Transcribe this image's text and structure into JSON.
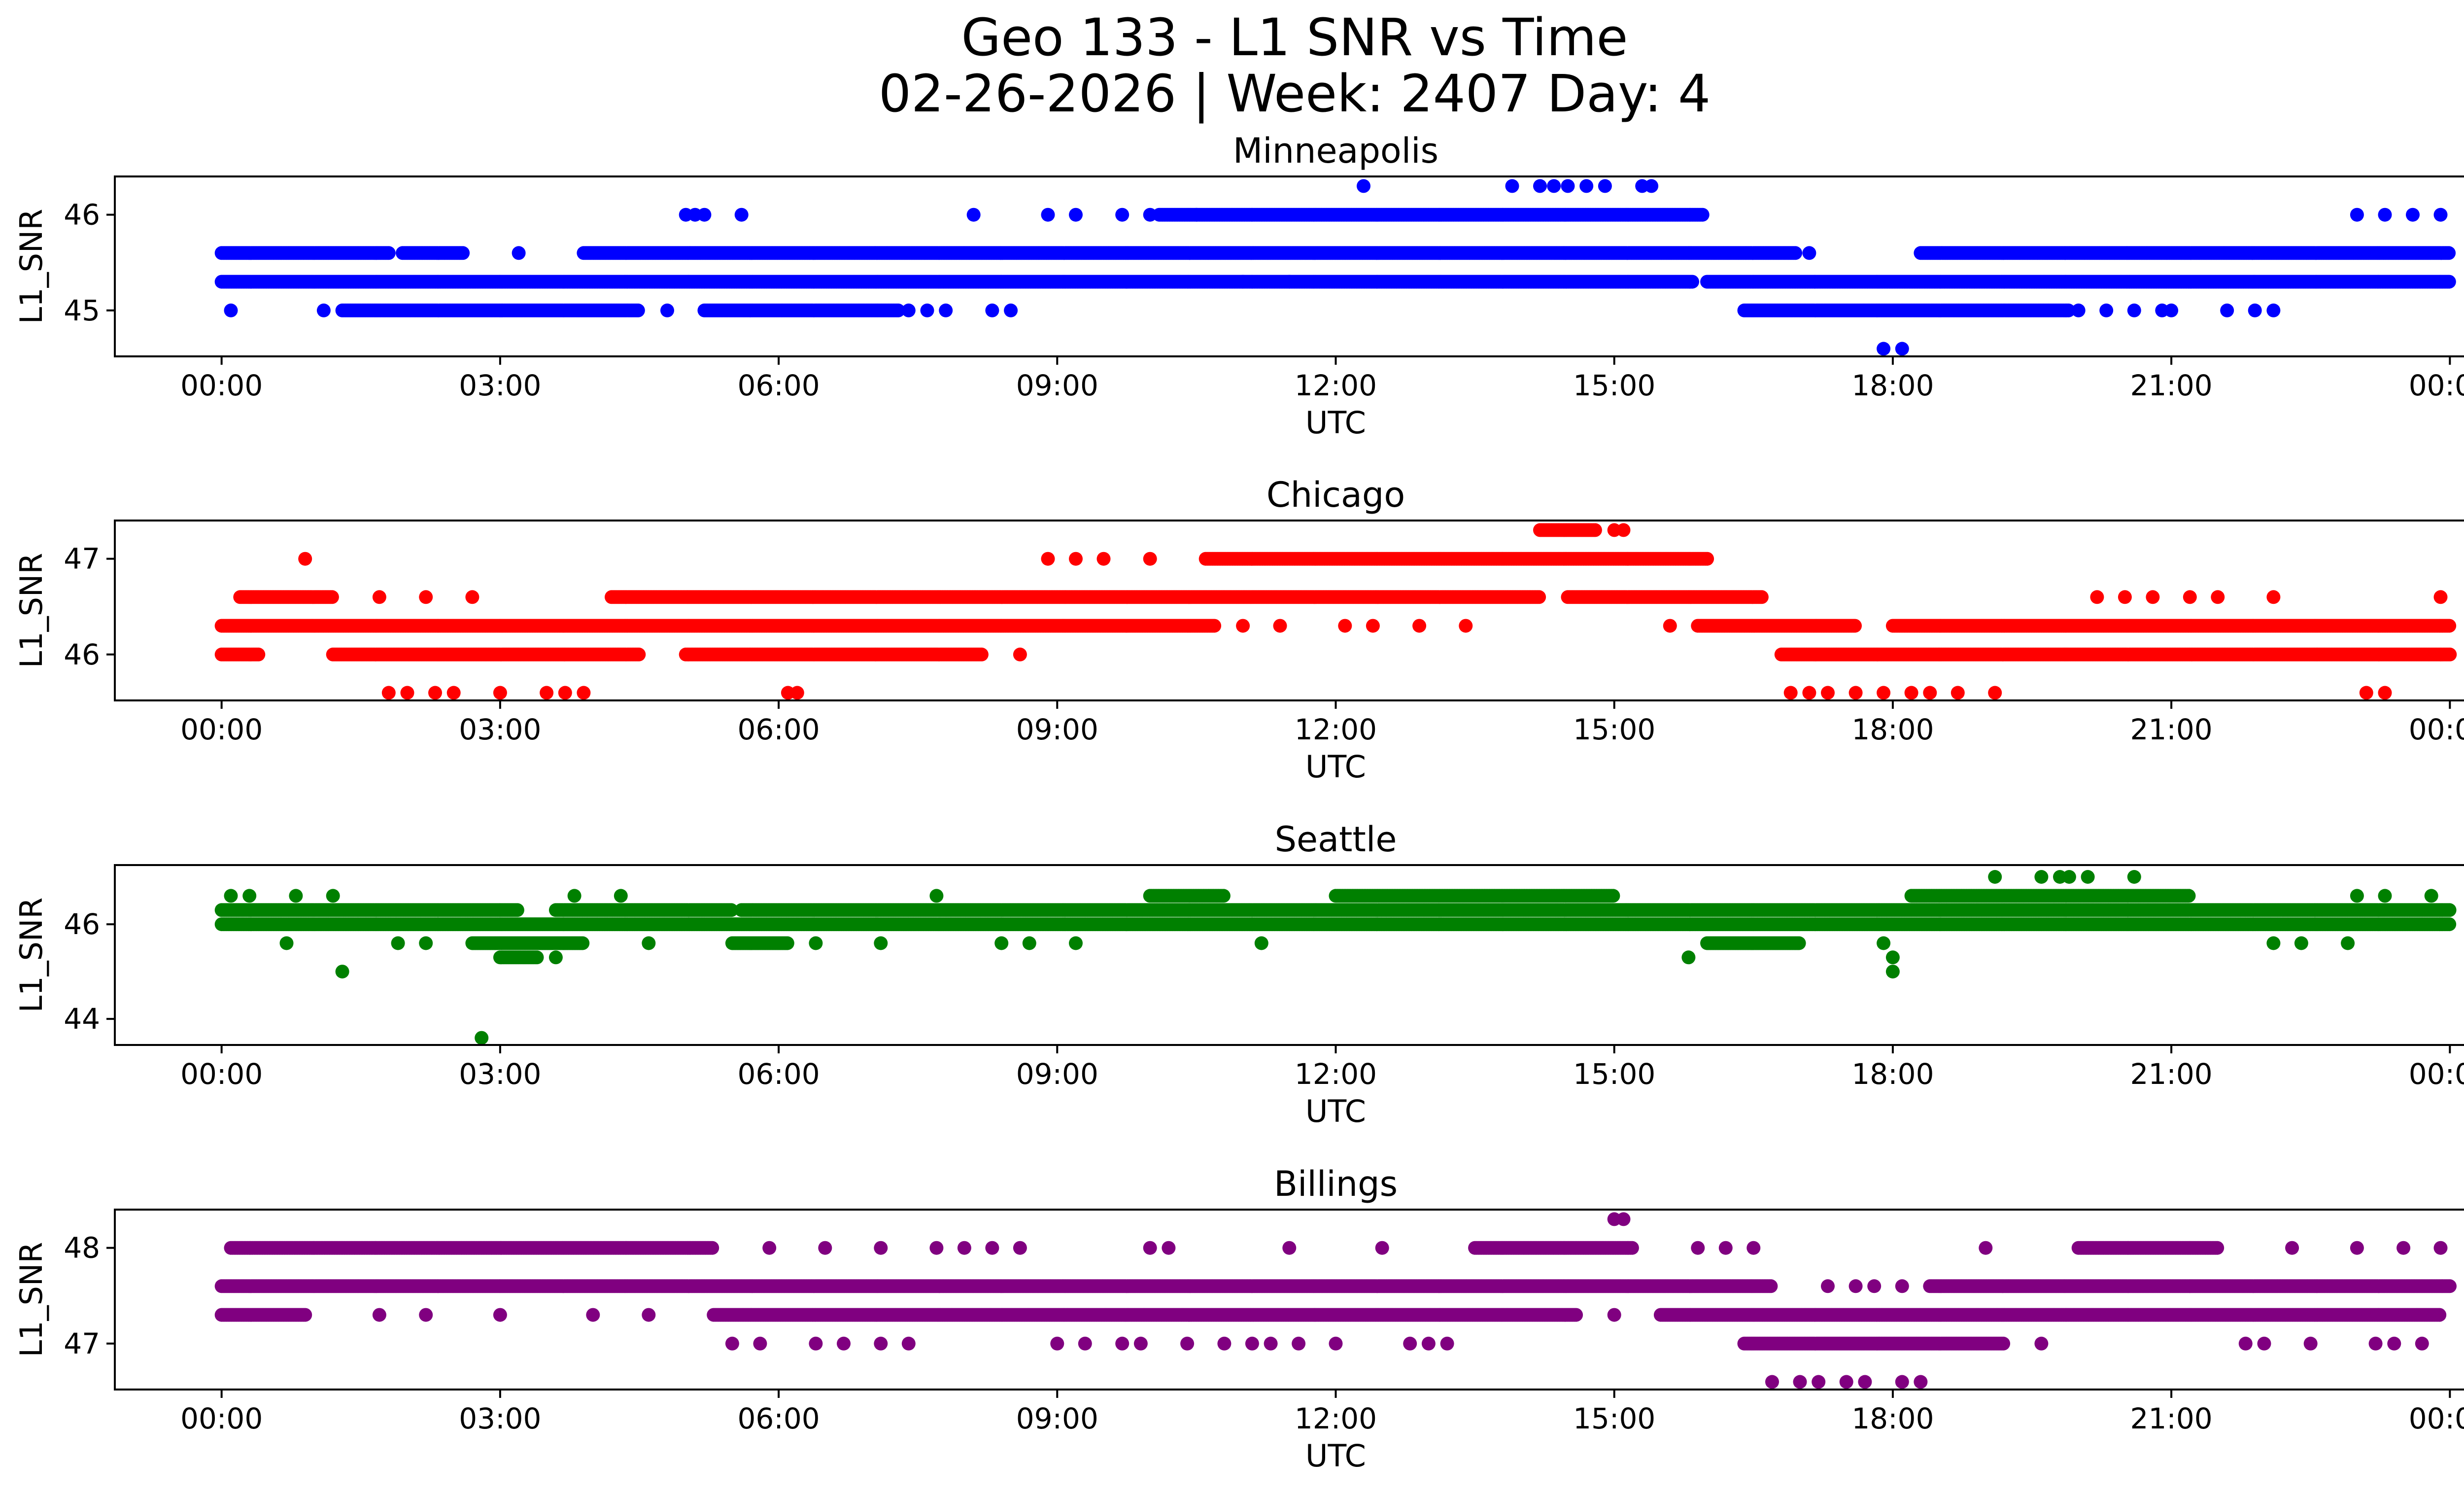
{
  "figure": {
    "title_line1": "Geo 133 - L1 SNR vs Time",
    "title_line2": "02-26-2026 | Week: 2407 Day: 4"
  },
  "chart_data": [
    {
      "type": "scatter",
      "title": "Minneapolis",
      "xlabel": "UTC",
      "ylabel": "L1_SNR",
      "color": "#0000ff",
      "xlim_hours": [
        -1.15,
        25.15
      ],
      "ylim": [
        44.52,
        46.4
      ],
      "xticks": [
        "00:00",
        "03:00",
        "06:00",
        "09:00",
        "12:00",
        "15:00",
        "18:00",
        "21:00",
        "00:00"
      ],
      "yticks": [
        45,
        46
      ],
      "grid": false,
      "bands": [
        {
          "y": 45.3,
          "segments": [
            [
              0.0,
              15.85
            ],
            [
              16.0,
              24.0
            ]
          ]
        },
        {
          "y": 45.6,
          "segments": [
            [
              0.0,
              1.8
            ],
            [
              1.95,
              2.6
            ],
            [
              3.9,
              16.95
            ],
            [
              18.3,
              24.0
            ]
          ]
        },
        {
          "y": 46.0,
          "segments": [
            [
              10.1,
              15.95
            ]
          ]
        },
        {
          "y": 45.0,
          "segments": [
            [
              1.3,
              4.5
            ],
            [
              5.2,
              7.3
            ],
            [
              16.4,
              19.9
            ]
          ]
        }
      ],
      "points": [
        {
          "x": 0.1,
          "y": 45.0
        },
        {
          "x": 1.1,
          "y": 45.0
        },
        {
          "x": 3.2,
          "y": 45.6
        },
        {
          "x": 4.8,
          "y": 45.0
        },
        {
          "x": 5.0,
          "y": 46.0
        },
        {
          "x": 5.1,
          "y": 46.0
        },
        {
          "x": 5.2,
          "y": 46.0
        },
        {
          "x": 5.6,
          "y": 46.0
        },
        {
          "x": 7.4,
          "y": 45.0
        },
        {
          "x": 7.6,
          "y": 45.0
        },
        {
          "x": 7.8,
          "y": 45.0
        },
        {
          "x": 8.1,
          "y": 46.0
        },
        {
          "x": 8.3,
          "y": 45.0
        },
        {
          "x": 8.5,
          "y": 45.0
        },
        {
          "x": 8.9,
          "y": 46.0
        },
        {
          "x": 9.2,
          "y": 46.0
        },
        {
          "x": 9.7,
          "y": 46.0
        },
        {
          "x": 10.0,
          "y": 46.0
        },
        {
          "x": 10.5,
          "y": 46.0
        },
        {
          "x": 11.0,
          "y": 45.3
        },
        {
          "x": 11.5,
          "y": 45.3
        },
        {
          "x": 12.3,
          "y": 46.3
        },
        {
          "x": 13.9,
          "y": 46.3
        },
        {
          "x": 14.2,
          "y": 46.3
        },
        {
          "x": 14.35,
          "y": 46.3
        },
        {
          "x": 14.5,
          "y": 46.3
        },
        {
          "x": 14.7,
          "y": 46.3
        },
        {
          "x": 14.9,
          "y": 46.3
        },
        {
          "x": 15.3,
          "y": 46.3
        },
        {
          "x": 15.4,
          "y": 46.3
        },
        {
          "x": 17.1,
          "y": 45.6
        },
        {
          "x": 17.9,
          "y": 44.6
        },
        {
          "x": 18.1,
          "y": 44.6
        },
        {
          "x": 20.0,
          "y": 45.0
        },
        {
          "x": 20.3,
          "y": 45.0
        },
        {
          "x": 20.6,
          "y": 45.0
        },
        {
          "x": 20.9,
          "y": 45.0
        },
        {
          "x": 21.0,
          "y": 45.0
        },
        {
          "x": 21.6,
          "y": 45.0
        },
        {
          "x": 21.9,
          "y": 45.0
        },
        {
          "x": 22.1,
          "y": 45.0
        },
        {
          "x": 23.0,
          "y": 46.0
        },
        {
          "x": 23.3,
          "y": 46.0
        },
        {
          "x": 23.6,
          "y": 46.0
        },
        {
          "x": 23.9,
          "y": 46.0
        }
      ]
    },
    {
      "type": "scatter",
      "title": "Chicago",
      "xlabel": "UTC",
      "ylabel": "L1_SNR",
      "color": "#ff0000",
      "xlim_hours": [
        -1.15,
        25.15
      ],
      "ylim": [
        45.52,
        47.4
      ],
      "xticks": [
        "00:00",
        "03:00",
        "06:00",
        "09:00",
        "12:00",
        "15:00",
        "18:00",
        "21:00",
        "00:00"
      ],
      "yticks": [
        46,
        47
      ],
      "grid": false,
      "bands": [
        {
          "y": 46.3,
          "segments": [
            [
              0.0,
              10.7
            ],
            [
              15.9,
              17.6
            ],
            [
              18.0,
              24.0
            ]
          ]
        },
        {
          "y": 46.0,
          "segments": [
            [
              0.0,
              0.4
            ],
            [
              1.2,
              4.5
            ],
            [
              5.0,
              8.2
            ],
            [
              16.8,
              24.0
            ]
          ]
        },
        {
          "y": 46.6,
          "segments": [
            [
              0.2,
              1.2
            ],
            [
              4.2,
              14.2
            ],
            [
              14.5,
              16.6
            ]
          ]
        },
        {
          "y": 47.0,
          "segments": [
            [
              10.6,
              16.0
            ]
          ]
        },
        {
          "y": 47.3,
          "segments": [
            [
              14.2,
              14.8
            ]
          ]
        }
      ],
      "points": [
        {
          "x": 0.9,
          "y": 47.0
        },
        {
          "x": 1.7,
          "y": 46.6
        },
        {
          "x": 1.8,
          "y": 45.6
        },
        {
          "x": 2.0,
          "y": 45.6
        },
        {
          "x": 2.2,
          "y": 46.6
        },
        {
          "x": 2.3,
          "y": 45.6
        },
        {
          "x": 2.5,
          "y": 45.6
        },
        {
          "x": 2.7,
          "y": 46.6
        },
        {
          "x": 3.0,
          "y": 45.6
        },
        {
          "x": 3.5,
          "y": 45.6
        },
        {
          "x": 3.7,
          "y": 45.6
        },
        {
          "x": 3.9,
          "y": 45.6
        },
        {
          "x": 6.1,
          "y": 45.6
        },
        {
          "x": 6.2,
          "y": 45.6
        },
        {
          "x": 8.6,
          "y": 46.0
        },
        {
          "x": 8.9,
          "y": 47.0
        },
        {
          "x": 9.2,
          "y": 47.0
        },
        {
          "x": 9.5,
          "y": 47.0
        },
        {
          "x": 10.0,
          "y": 47.0
        },
        {
          "x": 11.0,
          "y": 46.3
        },
        {
          "x": 11.4,
          "y": 46.3
        },
        {
          "x": 12.1,
          "y": 46.3
        },
        {
          "x": 12.4,
          "y": 46.3
        },
        {
          "x": 12.9,
          "y": 46.3
        },
        {
          "x": 13.4,
          "y": 46.3
        },
        {
          "x": 15.0,
          "y": 47.3
        },
        {
          "x": 15.1,
          "y": 47.3
        },
        {
          "x": 15.6,
          "y": 46.3
        },
        {
          "x": 16.9,
          "y": 45.6
        },
        {
          "x": 17.1,
          "y": 45.6
        },
        {
          "x": 17.3,
          "y": 45.6
        },
        {
          "x": 17.6,
          "y": 45.6
        },
        {
          "x": 17.9,
          "y": 45.6
        },
        {
          "x": 18.2,
          "y": 45.6
        },
        {
          "x": 18.4,
          "y": 45.6
        },
        {
          "x": 18.7,
          "y": 45.6
        },
        {
          "x": 19.1,
          "y": 45.6
        },
        {
          "x": 20.2,
          "y": 46.6
        },
        {
          "x": 20.5,
          "y": 46.6
        },
        {
          "x": 20.8,
          "y": 46.6
        },
        {
          "x": 21.2,
          "y": 46.6
        },
        {
          "x": 21.5,
          "y": 46.6
        },
        {
          "x": 22.1,
          "y": 46.6
        },
        {
          "x": 23.1,
          "y": 45.6
        },
        {
          "x": 23.3,
          "y": 45.6
        },
        {
          "x": 23.9,
          "y": 46.6
        }
      ]
    },
    {
      "type": "scatter",
      "title": "Seattle",
      "xlabel": "UTC",
      "ylabel": "L1_SNR",
      "color": "#008000",
      "xlim_hours": [
        -1.15,
        25.15
      ],
      "ylim": [
        43.45,
        47.25
      ],
      "xticks": [
        "00:00",
        "03:00",
        "06:00",
        "09:00",
        "12:00",
        "15:00",
        "18:00",
        "21:00",
        "00:00"
      ],
      "yticks": [
        44,
        46
      ],
      "grid": false,
      "bands": [
        {
          "y": 46.0,
          "segments": [
            [
              0.0,
              24.0
            ]
          ]
        },
        {
          "y": 46.3,
          "segments": [
            [
              0.0,
              3.2
            ],
            [
              3.6,
              5.5
            ],
            [
              5.6,
              24.0
            ]
          ]
        },
        {
          "y": 46.6,
          "segments": [
            [
              10.0,
              10.8
            ],
            [
              12.0,
              15.0
            ],
            [
              18.2,
              21.2
            ]
          ]
        },
        {
          "y": 45.6,
          "segments": [
            [
              2.7,
              3.9
            ],
            [
              5.5,
              6.1
            ],
            [
              16.0,
              17.0
            ]
          ]
        },
        {
          "y": 45.3,
          "segments": [
            [
              3.0,
              3.4
            ]
          ]
        }
      ],
      "points": [
        {
          "x": 0.1,
          "y": 46.6
        },
        {
          "x": 0.3,
          "y": 46.6
        },
        {
          "x": 0.7,
          "y": 45.6
        },
        {
          "x": 0.8,
          "y": 46.6
        },
        {
          "x": 1.2,
          "y": 46.6
        },
        {
          "x": 1.3,
          "y": 45.0
        },
        {
          "x": 1.9,
          "y": 45.6
        },
        {
          "x": 2.2,
          "y": 45.6
        },
        {
          "x": 2.8,
          "y": 43.6
        },
        {
          "x": 3.6,
          "y": 45.3
        },
        {
          "x": 3.8,
          "y": 46.6
        },
        {
          "x": 4.3,
          "y": 46.6
        },
        {
          "x": 4.6,
          "y": 45.6
        },
        {
          "x": 6.4,
          "y": 45.6
        },
        {
          "x": 7.1,
          "y": 45.6
        },
        {
          "x": 7.7,
          "y": 46.6
        },
        {
          "x": 8.4,
          "y": 45.6
        },
        {
          "x": 8.7,
          "y": 45.6
        },
        {
          "x": 9.2,
          "y": 45.6
        },
        {
          "x": 11.2,
          "y": 45.6
        },
        {
          "x": 15.8,
          "y": 45.3
        },
        {
          "x": 17.9,
          "y": 45.6
        },
        {
          "x": 18.0,
          "y": 45.3
        },
        {
          "x": 18.0,
          "y": 45.0
        },
        {
          "x": 19.1,
          "y": 47.0
        },
        {
          "x": 19.6,
          "y": 47.0
        },
        {
          "x": 19.8,
          "y": 47.0
        },
        {
          "x": 19.9,
          "y": 47.0
        },
        {
          "x": 20.1,
          "y": 47.0
        },
        {
          "x": 20.6,
          "y": 47.0
        },
        {
          "x": 22.1,
          "y": 45.6
        },
        {
          "x": 22.4,
          "y": 45.6
        },
        {
          "x": 22.9,
          "y": 45.6
        },
        {
          "x": 23.0,
          "y": 46.6
        },
        {
          "x": 23.3,
          "y": 46.6
        },
        {
          "x": 23.8,
          "y": 46.6
        }
      ]
    },
    {
      "type": "scatter",
      "title": "Billings",
      "xlabel": "UTC",
      "ylabel": "L1_SNR",
      "color": "#800080",
      "xlim_hours": [
        -1.15,
        25.15
      ],
      "ylim": [
        46.52,
        48.4
      ],
      "xticks": [
        "00:00",
        "03:00",
        "06:00",
        "09:00",
        "12:00",
        "15:00",
        "18:00",
        "21:00",
        "00:00"
      ],
      "yticks": [
        47,
        48
      ],
      "grid": false,
      "bands": [
        {
          "y": 47.6,
          "segments": [
            [
              0.0,
              16.7
            ],
            [
              18.4,
              24.0
            ]
          ]
        },
        {
          "y": 47.3,
          "segments": [
            [
              0.0,
              0.9
            ],
            [
              5.3,
              14.6
            ],
            [
              15.5,
              23.9
            ]
          ]
        },
        {
          "y": 48.0,
          "segments": [
            [
              0.1,
              5.3
            ],
            [
              13.5,
              15.2
            ],
            [
              20.0,
              21.5
            ]
          ]
        },
        {
          "y": 47.0,
          "segments": [
            [
              16.4,
              19.2
            ]
          ]
        }
      ],
      "points": [
        {
          "x": 1.7,
          "y": 47.3
        },
        {
          "x": 2.2,
          "y": 47.3
        },
        {
          "x": 3.0,
          "y": 47.3
        },
        {
          "x": 4.0,
          "y": 47.3
        },
        {
          "x": 4.6,
          "y": 47.3
        },
        {
          "x": 5.5,
          "y": 47.0
        },
        {
          "x": 5.8,
          "y": 47.0
        },
        {
          "x": 5.9,
          "y": 48.0
        },
        {
          "x": 6.5,
          "y": 48.0
        },
        {
          "x": 6.4,
          "y": 47.0
        },
        {
          "x": 6.7,
          "y": 47.0
        },
        {
          "x": 7.1,
          "y": 48.0
        },
        {
          "x": 7.1,
          "y": 47.0
        },
        {
          "x": 7.4,
          "y": 47.0
        },
        {
          "x": 7.7,
          "y": 48.0
        },
        {
          "x": 8.0,
          "y": 48.0
        },
        {
          "x": 8.3,
          "y": 48.0
        },
        {
          "x": 8.6,
          "y": 48.0
        },
        {
          "x": 9.0,
          "y": 47.0
        },
        {
          "x": 9.3,
          "y": 47.0
        },
        {
          "x": 9.7,
          "y": 47.0
        },
        {
          "x": 9.9,
          "y": 47.0
        },
        {
          "x": 10.0,
          "y": 48.0
        },
        {
          "x": 10.2,
          "y": 48.0
        },
        {
          "x": 10.4,
          "y": 47.0
        },
        {
          "x": 10.8,
          "y": 47.0
        },
        {
          "x": 11.1,
          "y": 47.0
        },
        {
          "x": 11.3,
          "y": 47.0
        },
        {
          "x": 11.6,
          "y": 47.0
        },
        {
          "x": 11.5,
          "y": 48.0
        },
        {
          "x": 12.0,
          "y": 47.0
        },
        {
          "x": 12.5,
          "y": 48.0
        },
        {
          "x": 12.8,
          "y": 47.0
        },
        {
          "x": 13.0,
          "y": 47.0
        },
        {
          "x": 13.2,
          "y": 47.0
        },
        {
          "x": 15.0,
          "y": 48.3
        },
        {
          "x": 15.1,
          "y": 48.3
        },
        {
          "x": 15.0,
          "y": 47.3
        },
        {
          "x": 15.9,
          "y": 48.0
        },
        {
          "x": 16.2,
          "y": 48.0
        },
        {
          "x": 16.5,
          "y": 48.0
        },
        {
          "x": 16.7,
          "y": 46.6
        },
        {
          "x": 17.0,
          "y": 46.6
        },
        {
          "x": 17.2,
          "y": 46.6
        },
        {
          "x": 17.5,
          "y": 46.6
        },
        {
          "x": 17.7,
          "y": 46.6
        },
        {
          "x": 18.1,
          "y": 46.6
        },
        {
          "x": 18.3,
          "y": 46.6
        },
        {
          "x": 17.3,
          "y": 47.6
        },
        {
          "x": 17.6,
          "y": 47.6
        },
        {
          "x": 17.8,
          "y": 47.6
        },
        {
          "x": 18.1,
          "y": 47.6
        },
        {
          "x": 19.0,
          "y": 48.0
        },
        {
          "x": 19.6,
          "y": 47.0
        },
        {
          "x": 21.8,
          "y": 47.0
        },
        {
          "x": 22.0,
          "y": 47.0
        },
        {
          "x": 22.3,
          "y": 48.0
        },
        {
          "x": 22.5,
          "y": 47.0
        },
        {
          "x": 23.2,
          "y": 47.0
        },
        {
          "x": 23.4,
          "y": 47.0
        },
        {
          "x": 23.7,
          "y": 47.0
        },
        {
          "x": 23.0,
          "y": 48.0
        },
        {
          "x": 23.5,
          "y": 48.0
        },
        {
          "x": 23.9,
          "y": 48.0
        }
      ]
    }
  ]
}
